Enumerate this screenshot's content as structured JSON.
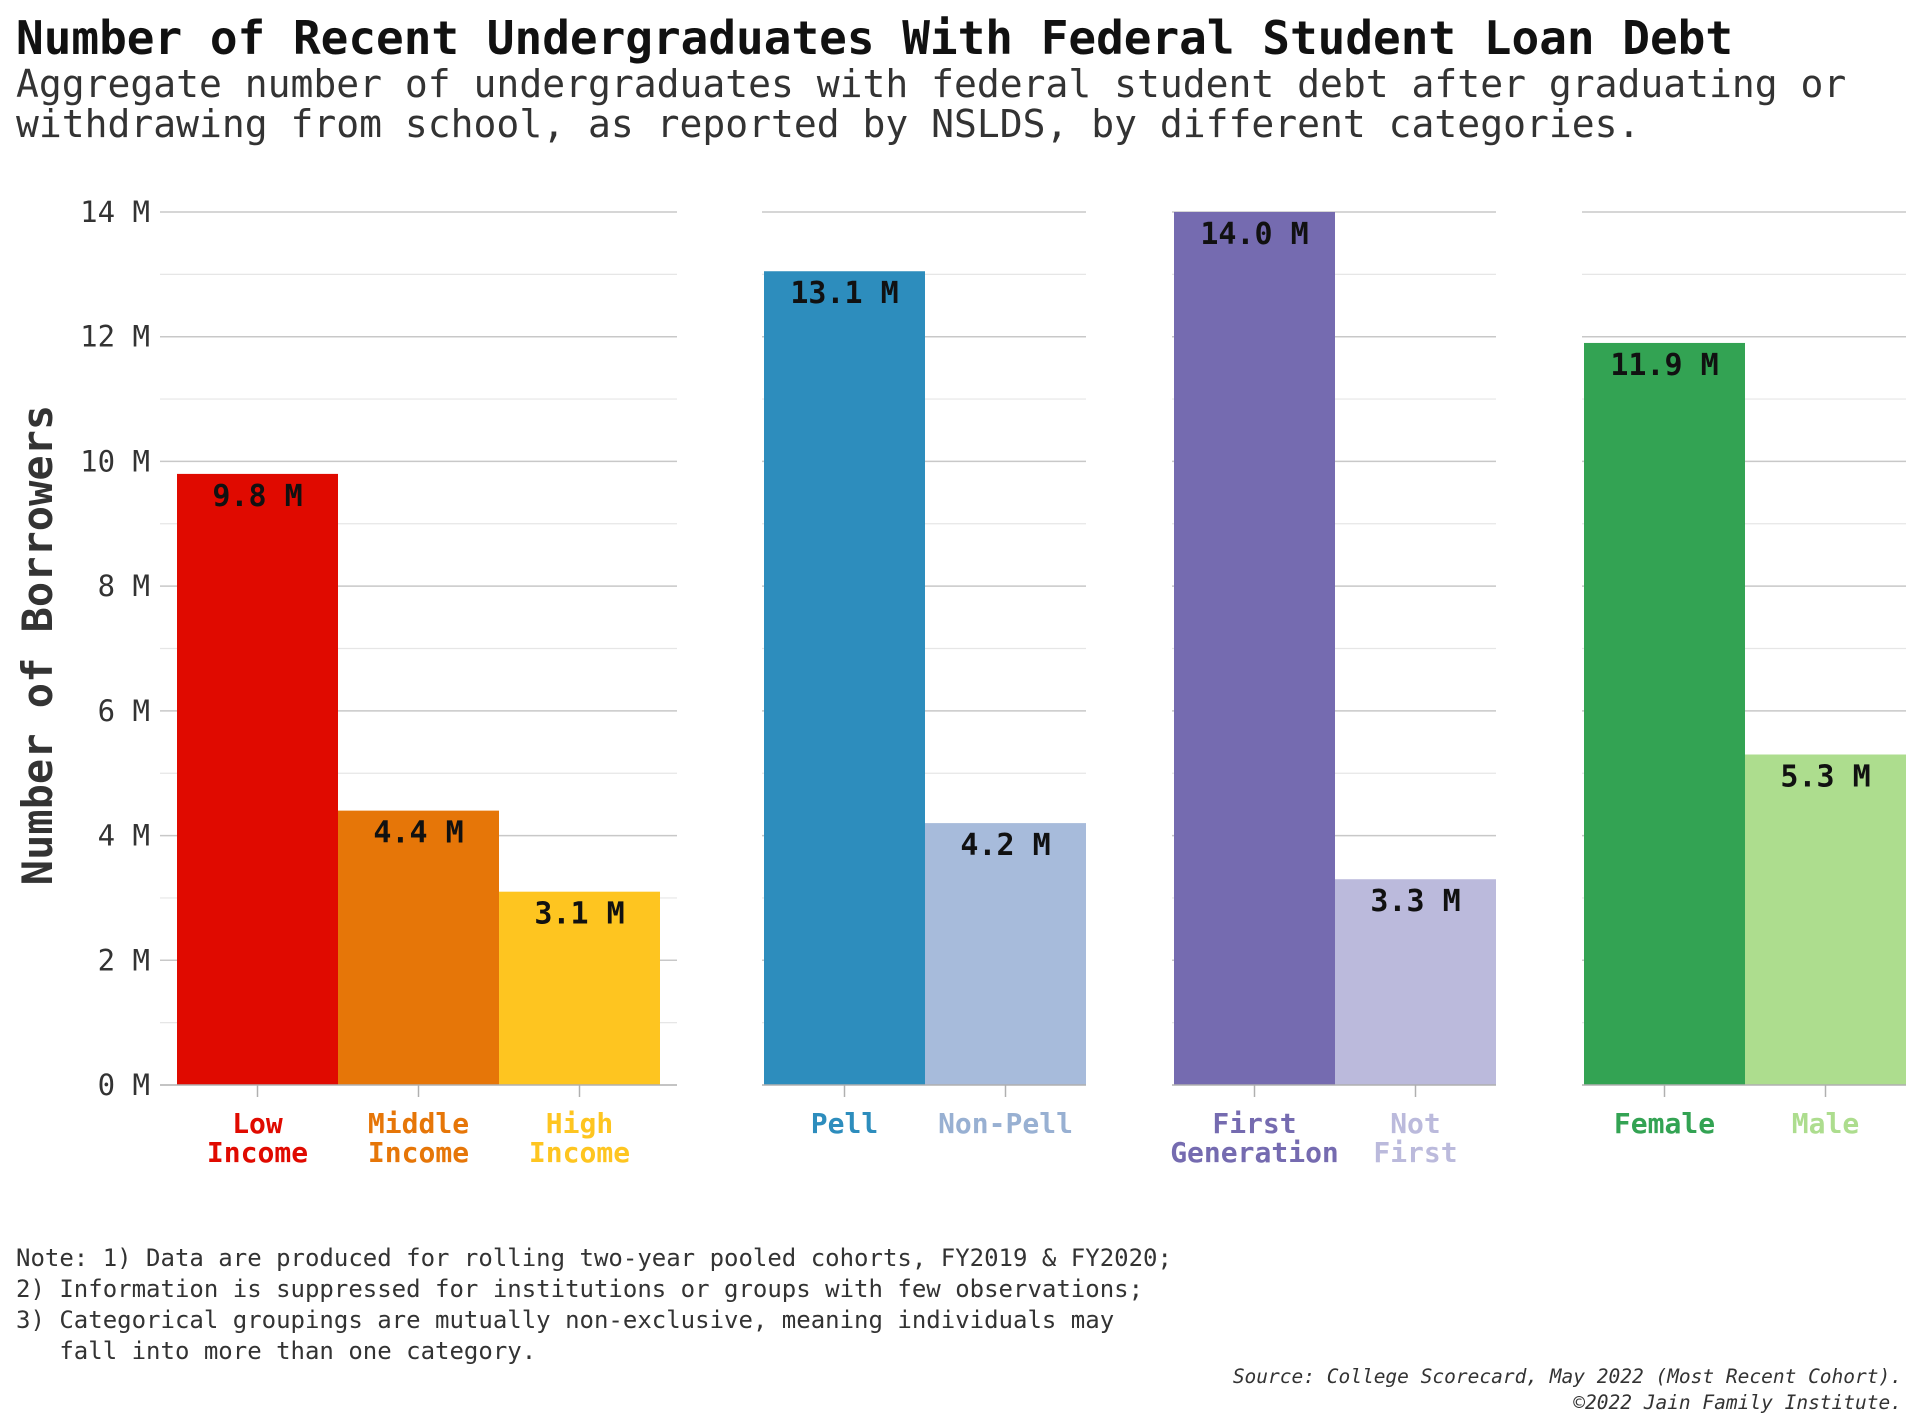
{
  "chart_data": {
    "type": "bar",
    "title": "Number of Recent Undergraduates With Federal Student Loan Debt",
    "subtitle": [
      "Aggregate number of undergraduates with federal student debt after graduating or",
      "withdrawing from school, as reported by NSLDS, by different categories."
    ],
    "ylabel": "Number of Borrowers",
    "ylim": [
      0,
      14
    ],
    "y_ticks": [
      {
        "value": 0,
        "label": "0 M"
      },
      {
        "value": 2,
        "label": "2 M"
      },
      {
        "value": 4,
        "label": "4 M"
      },
      {
        "value": 6,
        "label": "6 M"
      },
      {
        "value": 8,
        "label": "8 M"
      },
      {
        "value": 10,
        "label": "10 M"
      },
      {
        "value": 12,
        "label": "12 M"
      },
      {
        "value": 14,
        "label": "14 M"
      }
    ],
    "grid": true,
    "panels": [
      {
        "bars": [
          {
            "category": [
              "Low",
              "Income"
            ],
            "value": 9.8,
            "label": "9.8 M",
            "color": "#e00a00",
            "label_color": "#e00a00"
          },
          {
            "category": [
              "Middle",
              "Income"
            ],
            "value": 4.4,
            "label": "4.4 M",
            "color": "#e67608",
            "label_color": "#e67608"
          },
          {
            "category": [
              "High",
              "Income"
            ],
            "value": 3.1,
            "label": "3.1 M",
            "color": "#fec520",
            "label_color": "#fec520"
          }
        ]
      },
      {
        "bars": [
          {
            "category": [
              "Pell"
            ],
            "value": 13.05,
            "label": "13.1 M",
            "color": "#2d8dbd",
            "label_color": "#2d8dbd"
          },
          {
            "category": [
              "Non-Pell"
            ],
            "value": 4.2,
            "label": "4.2 M",
            "color": "#a7bbdb",
            "label_color": "#98b0d2"
          }
        ]
      },
      {
        "bars": [
          {
            "category": [
              "First",
              "Generation"
            ],
            "value": 14.0,
            "label": "14.0 M",
            "color": "#756bb0",
            "label_color": "#756bb0"
          },
          {
            "category": [
              "Not",
              "First"
            ],
            "value": 3.3,
            "label": "3.3 M",
            "color": "#bbbadc",
            "label_color": "#bbbadc"
          }
        ]
      },
      {
        "bars": [
          {
            "category": [
              "Female"
            ],
            "value": 11.9,
            "label": "11.9 M",
            "color": "#33a353",
            "label_color": "#33a353"
          },
          {
            "category": [
              "Male"
            ],
            "value": 5.3,
            "label": "5.3 M",
            "color": "#addd8e",
            "label_color": "#addd8e"
          }
        ]
      }
    ],
    "note": [
      "Note: 1) Data are produced for rolling two-year pooled cohorts, FY2019 & FY2020;",
      "2) Information is suppressed for institutions or groups with few observations;",
      "3) Categorical groupings are mutually non-exclusive, meaning individuals may",
      "   fall into more than one category."
    ],
    "source": [
      "Source: College Scorecard, May 2022 (Most Recent Cohort).",
      "©2022 Jain Family Institute."
    ]
  }
}
